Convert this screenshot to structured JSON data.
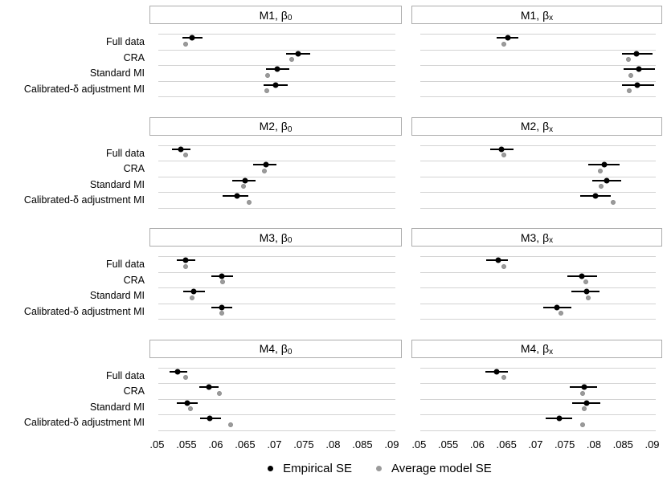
{
  "chart_data": {
    "type": "scatter",
    "subtype": "multi-panel-dotplot-with-error-bars",
    "categories": [
      "Full data",
      "CRA",
      "Standard MI",
      "Calibrated-δ adjustment MI"
    ],
    "x_axis": {
      "ticks": [
        ".05",
        ".055",
        ".06",
        ".065",
        ".07",
        ".075",
        ".08",
        ".085",
        ".09"
      ],
      "tick_values": [
        0.05,
        0.055,
        0.06,
        0.065,
        0.07,
        0.075,
        0.08,
        0.085,
        0.09
      ],
      "min": 0.05,
      "max": 0.09
    },
    "legend": [
      {
        "label": "Empirical SE",
        "color": "#000000"
      },
      {
        "label": "Average model SE",
        "color": "#9b9b9b"
      }
    ],
    "legend_position": "bottom",
    "grid": "horizontal-category-lines",
    "panels": [
      {
        "title": {
          "text": "M1, β",
          "sub": "0"
        },
        "rows": [
          {
            "category": "Full data",
            "empirical_se": 0.056,
            "ci": [
              0.0543,
              0.0578
            ],
            "average_model_se": 0.0549
          },
          {
            "category": "CRA",
            "empirical_se": 0.074,
            "ci": [
              0.072,
              0.0761
            ],
            "average_model_se": 0.073
          },
          {
            "category": "Standard MI",
            "empirical_se": 0.0705,
            "ci": [
              0.0686,
              0.0726
            ],
            "average_model_se": 0.0689
          },
          {
            "category": "Calibrated-δ adjustment MI",
            "empirical_se": 0.0702,
            "ci": [
              0.0682,
              0.0723
            ],
            "average_model_se": 0.0687
          }
        ]
      },
      {
        "title": {
          "text": "M1, β",
          "sub": "x"
        },
        "rows": [
          {
            "category": "Full data",
            "empirical_se": 0.0652,
            "ci": [
              0.0633,
              0.0671
            ],
            "average_model_se": 0.0645
          },
          {
            "category": "CRA",
            "empirical_se": 0.0873,
            "ci": [
              0.0848,
              0.09
            ],
            "average_model_se": 0.0859
          },
          {
            "category": "Standard MI",
            "empirical_se": 0.0877,
            "ci": [
              0.0851,
              0.0905
            ],
            "average_model_se": 0.0863
          },
          {
            "category": "Calibrated-δ adjustment MI",
            "empirical_se": 0.0875,
            "ci": [
              0.0848,
              0.0903
            ],
            "average_model_se": 0.0861
          }
        ]
      },
      {
        "title": {
          "text": "M2, β",
          "sub": "0"
        },
        "rows": [
          {
            "category": "Full data",
            "empirical_se": 0.0541,
            "ci": [
              0.0525,
              0.0557
            ],
            "average_model_se": 0.0549
          },
          {
            "category": "CRA",
            "empirical_se": 0.0686,
            "ci": [
              0.0664,
              0.0703
            ],
            "average_model_se": 0.0683
          },
          {
            "category": "Standard MI",
            "empirical_se": 0.065,
            "ci": [
              0.0628,
              0.0668
            ],
            "average_model_se": 0.0648
          },
          {
            "category": "Calibrated-δ adjustment MI",
            "empirical_se": 0.0636,
            "ci": [
              0.0612,
              0.0655
            ],
            "average_model_se": 0.0657
          }
        ]
      },
      {
        "title": {
          "text": "M2, β",
          "sub": "x"
        },
        "rows": [
          {
            "category": "Full data",
            "empirical_se": 0.0642,
            "ci": [
              0.0622,
              0.0662
            ],
            "average_model_se": 0.0645
          },
          {
            "category": "CRA",
            "empirical_se": 0.0818,
            "ci": [
              0.0791,
              0.0844
            ],
            "average_model_se": 0.0811
          },
          {
            "category": "Standard MI",
            "empirical_se": 0.0822,
            "ci": [
              0.0797,
              0.0847
            ],
            "average_model_se": 0.0813
          },
          {
            "category": "Calibrated-δ adjustment MI",
            "empirical_se": 0.0803,
            "ci": [
              0.0777,
              0.0829
            ],
            "average_model_se": 0.0833
          }
        ]
      },
      {
        "title": {
          "text": "M3, β",
          "sub": "0"
        },
        "rows": [
          {
            "category": "Full data",
            "empirical_se": 0.0549,
            "ci": [
              0.0533,
              0.0565
            ],
            "average_model_se": 0.0549
          },
          {
            "category": "CRA",
            "empirical_se": 0.0611,
            "ci": [
              0.0593,
              0.0629
            ],
            "average_model_se": 0.0612
          },
          {
            "category": "Standard MI",
            "empirical_se": 0.0563,
            "ci": [
              0.0545,
              0.0581
            ],
            "average_model_se": 0.056
          },
          {
            "category": "Calibrated-δ adjustment MI",
            "empirical_se": 0.061,
            "ci": [
              0.0592,
              0.0628
            ],
            "average_model_se": 0.061
          }
        ]
      },
      {
        "title": {
          "text": "M3, β",
          "sub": "x"
        },
        "rows": [
          {
            "category": "Full data",
            "empirical_se": 0.0636,
            "ci": [
              0.0615,
              0.0653
            ],
            "average_model_se": 0.0646
          },
          {
            "category": "CRA",
            "empirical_se": 0.078,
            "ci": [
              0.0755,
              0.0805
            ],
            "average_model_se": 0.0786
          },
          {
            "category": "Standard MI",
            "empirical_se": 0.0787,
            "ci": [
              0.0762,
              0.081
            ],
            "average_model_se": 0.079
          },
          {
            "category": "Calibrated-δ adjustment MI",
            "empirical_se": 0.0737,
            "ci": [
              0.0713,
              0.0761
            ],
            "average_model_se": 0.0743
          }
        ]
      },
      {
        "title": {
          "text": "M4, β",
          "sub": "0"
        },
        "rows": [
          {
            "category": "Full data",
            "empirical_se": 0.0535,
            "ci": [
              0.0521,
              0.0552
            ],
            "average_model_se": 0.0549
          },
          {
            "category": "CRA",
            "empirical_se": 0.0588,
            "ci": [
              0.0572,
              0.0605
            ],
            "average_model_se": 0.0606
          },
          {
            "category": "Standard MI",
            "empirical_se": 0.0551,
            "ci": [
              0.0534,
              0.0569
            ],
            "average_model_se": 0.0557
          },
          {
            "category": "Calibrated-δ adjustment MI",
            "empirical_se": 0.059,
            "ci": [
              0.0574,
              0.0609
            ],
            "average_model_se": 0.0625
          }
        ]
      },
      {
        "title": {
          "text": "M4, β",
          "sub": "x"
        },
        "rows": [
          {
            "category": "Full data",
            "empirical_se": 0.0633,
            "ci": [
              0.0614,
              0.0652
            ],
            "average_model_se": 0.0646
          },
          {
            "category": "CRA",
            "empirical_se": 0.0783,
            "ci": [
              0.0759,
              0.0806
            ],
            "average_model_se": 0.0781
          },
          {
            "category": "Standard MI",
            "empirical_se": 0.0787,
            "ci": [
              0.0763,
              0.0811
            ],
            "average_model_se": 0.0784
          },
          {
            "category": "Calibrated-δ adjustment MI",
            "empirical_se": 0.0741,
            "ci": [
              0.0717,
              0.0763
            ],
            "average_model_se": 0.0781
          }
        ]
      }
    ],
    "colors": {
      "empirical": "#000000",
      "average_model": "#9b9b9b",
      "gridline": "#d3d3d3",
      "strip_border": "#acacac"
    }
  }
}
